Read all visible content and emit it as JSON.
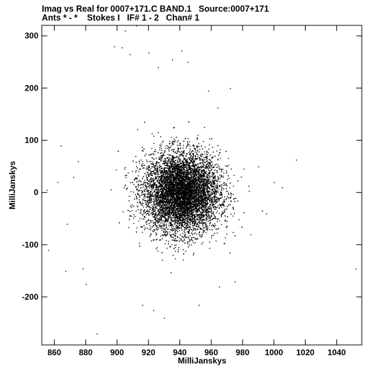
{
  "header": {
    "line1": "Imag vs Real for 0007+171.C BAND.1   Source:0007+171",
    "line2": "Ants * - *    Stokes I   IF# 1 - 2   Chan# 1"
  },
  "chart_data": {
    "type": "scatter",
    "xlabel": "MilliJanskys",
    "ylabel": "MilliJanskys",
    "xlim": [
      852,
      1056
    ],
    "ylim": [
      -292,
      320
    ],
    "xticks": [
      860,
      880,
      900,
      920,
      940,
      960,
      980,
      1000,
      1020,
      1040
    ],
    "yticks": [
      -200,
      -100,
      0,
      100,
      200,
      300
    ],
    "grid": false,
    "legend": "none",
    "marker_color": "#000000",
    "cloud": {
      "center_x": 941,
      "center_y": 0,
      "sigma_x": 12,
      "sigma_y": 38
    },
    "outliers": [
      [
        855,
        5
      ],
      [
        856,
        -110
      ],
      [
        864,
        90
      ],
      [
        862,
        20
      ],
      [
        867,
        -150
      ],
      [
        872,
        30
      ],
      [
        878,
        -145
      ],
      [
        880,
        -175
      ],
      [
        887,
        -270
      ],
      [
        898,
        280
      ],
      [
        903,
        278
      ],
      [
        905,
        310
      ],
      [
        908,
        265
      ],
      [
        912,
        320
      ],
      [
        920,
        268
      ],
      [
        926,
        240
      ],
      [
        935,
        255
      ],
      [
        941,
        272
      ],
      [
        945,
        250
      ],
      [
        930,
        -240
      ],
      [
        923,
        -225
      ],
      [
        916,
        -215
      ],
      [
        952,
        -215
      ],
      [
        965,
        -180
      ],
      [
        975,
        -170
      ],
      [
        990,
        50
      ],
      [
        1000,
        20
      ],
      [
        1005,
        10
      ],
      [
        1014,
        63
      ],
      [
        1052,
        -146
      ],
      [
        985,
        -80
      ],
      [
        995,
        -40
      ],
      [
        868,
        -60
      ],
      [
        875,
        60
      ],
      [
        958,
        195
      ],
      [
        972,
        200
      ]
    ]
  }
}
